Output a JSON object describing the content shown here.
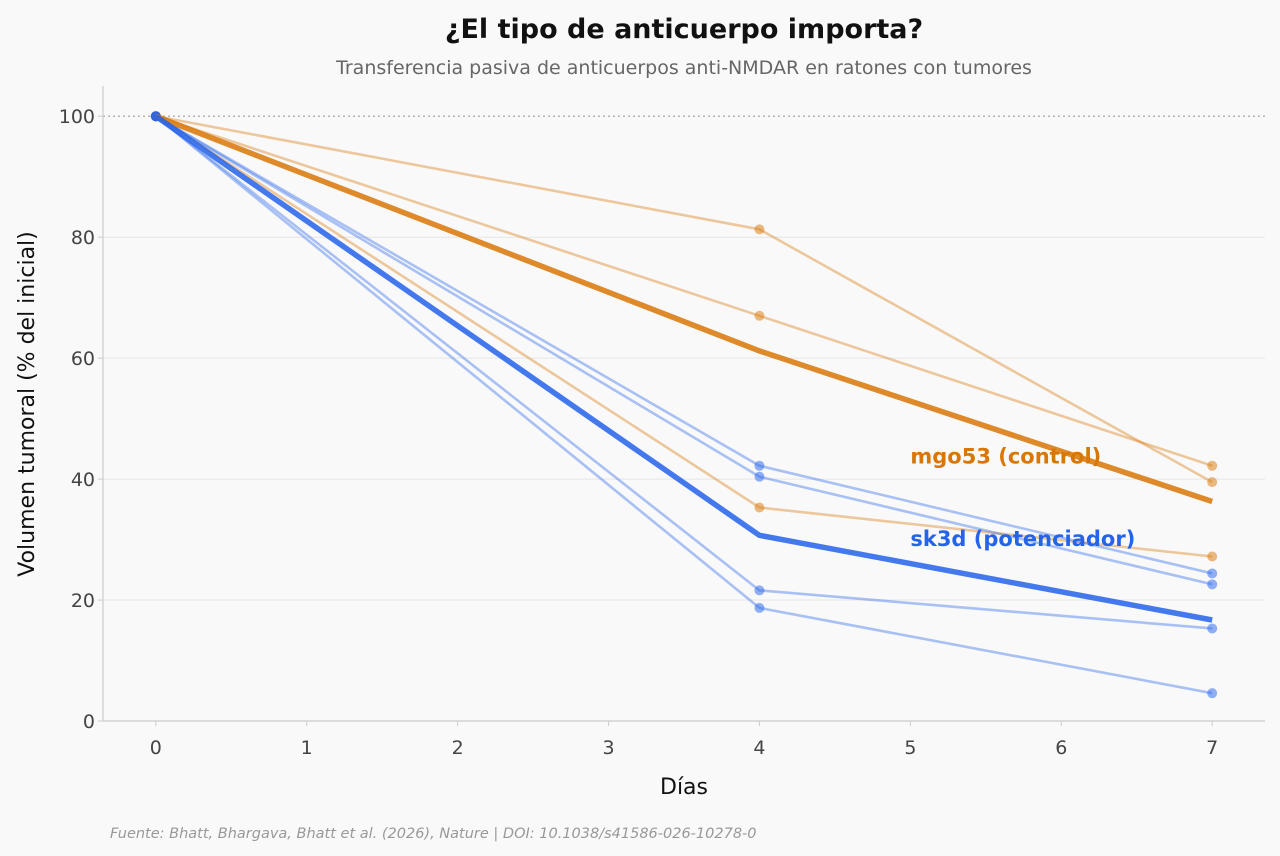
{
  "chart_data": {
    "type": "line",
    "title": "¿El tipo de anticuerpo importa?",
    "subtitle": "Transferencia pasiva de anticuerpos anti-NMDAR en ratones con tumores",
    "xlabel": "Días",
    "ylabel": "Volumen tumoral (% del inicial)",
    "source": "Fuente: Bhatt, Bhargava, Bhatt et al. (2026), Nature | DOI: 10.1038/s41586-026-10278-0",
    "xlim": [
      -0.35,
      7.35
    ],
    "ylim": [
      0,
      105
    ],
    "xticks": [
      0,
      1,
      2,
      3,
      4,
      5,
      6,
      7
    ],
    "yticks": [
      0,
      20,
      40,
      60,
      80,
      100
    ],
    "reference_line": 100,
    "grid": "horizontal",
    "x": [
      0,
      4,
      7
    ],
    "groups": [
      {
        "name": "mgo53 (control)",
        "color": "#d97706",
        "mean": [
          100,
          61.2,
          36.3
        ],
        "individuals": [
          [
            100,
            81.3,
            39.5
          ],
          [
            100,
            67.0,
            42.2
          ],
          [
            100,
            35.3,
            27.2
          ]
        ]
      },
      {
        "name": "sk3d (potenciador)",
        "color": "#2563eb",
        "mean": [
          100,
          30.7,
          16.7
        ],
        "individuals": [
          [
            100,
            42.2,
            24.4
          ],
          [
            100,
            40.4,
            22.6
          ],
          [
            100,
            21.6,
            15.3
          ],
          [
            100,
            18.7,
            4.6
          ]
        ]
      }
    ]
  }
}
